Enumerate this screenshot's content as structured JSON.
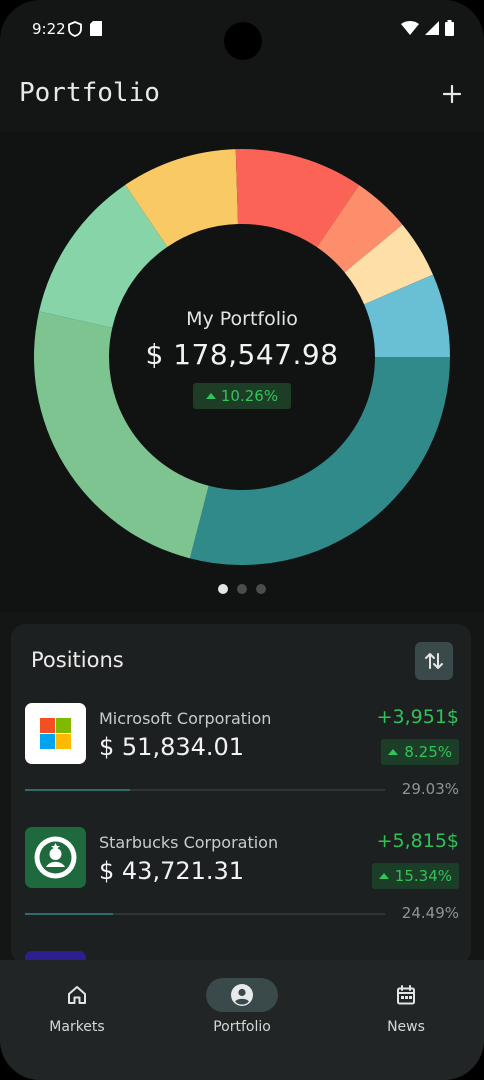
{
  "status_bar": {
    "time": "9:22"
  },
  "app_bar": {
    "title": "Portfolio"
  },
  "portfolio_summary": {
    "label": "My Portfolio",
    "total_value": "$ 178,547.98",
    "change_percent": "10.26%"
  },
  "donut": {
    "segments": [
      {
        "color": "#2f8a89",
        "share": 0.2903
      },
      {
        "color": "#7ec491",
        "share": 0.2449
      },
      {
        "color": "#87d4a9",
        "share": 0.12
      },
      {
        "color": "#f9c964",
        "share": 0.09
      },
      {
        "color": "#fa6356",
        "share": 0.1
      },
      {
        "color": "#fd8e6c",
        "share": 0.045
      },
      {
        "color": "#fddfa7",
        "share": 0.045
      },
      {
        "color": "#69bfd3",
        "share": 0.0648
      }
    ]
  },
  "pager": {
    "count": 3,
    "active": 0
  },
  "positions": {
    "title": "Positions",
    "items": [
      {
        "company": "Microsoft Corporation",
        "amount": "$ 51,834.01",
        "gain": "+3,951$",
        "change": "8.25%",
        "share": "29.03%",
        "share_fraction": 0.2903,
        "logo": "microsoft-logo"
      },
      {
        "company": "Starbucks Corporation",
        "amount": "$ 43,721.31",
        "gain": "+5,815$",
        "change": "15.34%",
        "share": "24.49%",
        "share_fraction": 0.2449,
        "logo": "starbucks-logo"
      }
    ]
  },
  "bottom_nav": {
    "items": [
      {
        "label": "Markets",
        "icon": "home-icon"
      },
      {
        "label": "Portfolio",
        "icon": "account-circle-icon"
      },
      {
        "label": "News",
        "icon": "calendar-icon"
      }
    ],
    "active": 1
  },
  "colors": {
    "accent_green": "#32c45a",
    "card_bg": "#1d2020",
    "nav_active_bg": "#3a4949"
  }
}
